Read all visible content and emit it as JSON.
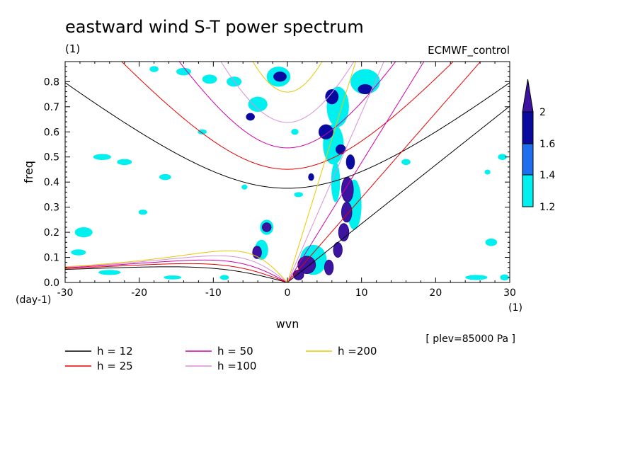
{
  "chart_data": {
    "type": "heatmap",
    "title": "eastward wind S-T power spectrum",
    "subtitle_left": "(1)",
    "subtitle_right": "ECMWF_control",
    "xlabel": "wvn",
    "ylabel": "freq",
    "x_unit": "(1)",
    "y_unit": "(day-1)",
    "xlim": [
      -30,
      30
    ],
    "ylim": [
      0,
      0.88
    ],
    "xticks": [
      -30,
      -20,
      -10,
      0,
      10,
      20,
      30
    ],
    "xtick_labels": [
      "-30",
      "-20",
      "-10",
      "0",
      "10",
      "20",
      "30"
    ],
    "yticks": [
      0,
      0.1,
      0.2,
      0.3,
      0.4,
      0.5,
      0.6,
      0.7,
      0.8
    ],
    "ytick_labels": [
      "0.0",
      "0.1",
      "0.2",
      "0.3",
      "0.4",
      "0.5",
      "0.6",
      "0.7",
      "0.8"
    ],
    "annotation": "[ plev=85000 Pa ]",
    "colorbar": {
      "levels": [
        1.2,
        1.4,
        1.6,
        2
      ],
      "level_labels": [
        "1.2",
        "1.4",
        "1.6",
        "2"
      ],
      "colors": [
        "#00f0f0",
        "#1e6ef0",
        "#0a0aa0",
        "#3c14a0"
      ]
    },
    "dispersion_curves": [
      {
        "label": "h = 12",
        "h": 12,
        "color": "#000000"
      },
      {
        "label": "h = 25",
        "h": 25,
        "color": "#e80000"
      },
      {
        "label": "h = 50",
        "h": 50,
        "color": "#d000a8"
      },
      {
        "label": "h =100",
        "h": 100,
        "color": "#d890d8"
      },
      {
        "label": "h =200",
        "h": 200,
        "color": "#e8c800"
      }
    ],
    "blobs": [
      {
        "x": 8.1,
        "y": 0.37,
        "rx": 0.8,
        "ry": 0.05,
        "lvl": 3
      },
      {
        "x": 8.0,
        "y": 0.28,
        "rx": 0.7,
        "ry": 0.04,
        "lvl": 3
      },
      {
        "x": 7.6,
        "y": 0.2,
        "rx": 0.7,
        "ry": 0.035,
        "lvl": 3
      },
      {
        "x": 6.8,
        "y": 0.13,
        "rx": 0.6,
        "ry": 0.03,
        "lvl": 3
      },
      {
        "x": 5.6,
        "y": 0.06,
        "rx": 0.6,
        "ry": 0.03,
        "lvl": 3
      },
      {
        "x": 2.6,
        "y": 0.07,
        "rx": 1.2,
        "ry": 0.035,
        "lvl": 3
      },
      {
        "x": 1.5,
        "y": 0.03,
        "rx": 0.7,
        "ry": 0.02,
        "lvl": 3
      },
      {
        "x": -2.8,
        "y": 0.22,
        "rx": 0.6,
        "ry": 0.018,
        "lvl": 3
      },
      {
        "x": -4.1,
        "y": 0.12,
        "rx": 0.6,
        "ry": 0.025,
        "lvl": 3
      },
      {
        "x": 8.5,
        "y": 0.48,
        "rx": 0.6,
        "ry": 0.03,
        "lvl": 2
      },
      {
        "x": 5.2,
        "y": 0.6,
        "rx": 1.0,
        "ry": 0.03,
        "lvl": 2
      },
      {
        "x": 7.2,
        "y": 0.53,
        "rx": 0.7,
        "ry": 0.02,
        "lvl": 2
      },
      {
        "x": 6.0,
        "y": 0.74,
        "rx": 0.9,
        "ry": 0.03,
        "lvl": 2
      },
      {
        "x": 10.5,
        "y": 0.77,
        "rx": 1.0,
        "ry": 0.02,
        "lvl": 2
      },
      {
        "x": -1.0,
        "y": 0.82,
        "rx": 0.9,
        "ry": 0.02,
        "lvl": 2
      },
      {
        "x": -5.0,
        "y": 0.66,
        "rx": 0.6,
        "ry": 0.015,
        "lvl": 2
      },
      {
        "x": 3.2,
        "y": 0.42,
        "rx": 0.4,
        "ry": 0.015,
        "lvl": 2
      },
      {
        "x": 6.5,
        "y": 0.4,
        "rx": 0.6,
        "ry": 0.08,
        "lvl": 1
      },
      {
        "x": 6.2,
        "y": 0.55,
        "rx": 1.4,
        "ry": 0.08,
        "lvl": 1
      },
      {
        "x": 6.8,
        "y": 0.7,
        "rx": 1.5,
        "ry": 0.08,
        "lvl": 1
      },
      {
        "x": 10.5,
        "y": 0.8,
        "rx": 2.0,
        "ry": 0.05,
        "lvl": 1
      },
      {
        "x": 9.0,
        "y": 0.31,
        "rx": 1.0,
        "ry": 0.1,
        "lvl": 1
      },
      {
        "x": 3.5,
        "y": 0.09,
        "rx": 1.8,
        "ry": 0.06,
        "lvl": 1
      },
      {
        "x": -3.5,
        "y": 0.13,
        "rx": 0.9,
        "ry": 0.04,
        "lvl": 1
      },
      {
        "x": -2.8,
        "y": 0.22,
        "rx": 0.9,
        "ry": 0.03,
        "lvl": 1
      },
      {
        "x": -1.2,
        "y": 0.82,
        "rx": 1.6,
        "ry": 0.04,
        "lvl": 1
      },
      {
        "x": -4.0,
        "y": 0.71,
        "rx": 1.3,
        "ry": 0.03,
        "lvl": 1
      },
      {
        "x": -7.2,
        "y": 0.8,
        "rx": 1.0,
        "ry": 0.02,
        "lvl": 1
      },
      {
        "x": -10.5,
        "y": 0.81,
        "rx": 1.0,
        "ry": 0.018,
        "lvl": 1
      },
      {
        "x": -14.0,
        "y": 0.84,
        "rx": 1.0,
        "ry": 0.015,
        "lvl": 1
      },
      {
        "x": -18.0,
        "y": 0.85,
        "rx": 0.6,
        "ry": 0.012,
        "lvl": 1
      },
      {
        "x": -27.5,
        "y": 0.2,
        "rx": 1.2,
        "ry": 0.02,
        "lvl": 1
      },
      {
        "x": -28.2,
        "y": 0.12,
        "rx": 1.0,
        "ry": 0.012,
        "lvl": 1
      },
      {
        "x": -24.0,
        "y": 0.04,
        "rx": 1.5,
        "ry": 0.01,
        "lvl": 1
      },
      {
        "x": -15.5,
        "y": 0.02,
        "rx": 1.2,
        "ry": 0.008,
        "lvl": 1
      },
      {
        "x": -19.5,
        "y": 0.28,
        "rx": 0.6,
        "ry": 0.01,
        "lvl": 1
      },
      {
        "x": -22.0,
        "y": 0.48,
        "rx": 1.0,
        "ry": 0.012,
        "lvl": 1
      },
      {
        "x": -25.0,
        "y": 0.5,
        "rx": 1.2,
        "ry": 0.012,
        "lvl": 1
      },
      {
        "x": -16.5,
        "y": 0.42,
        "rx": 0.8,
        "ry": 0.012,
        "lvl": 1
      },
      {
        "x": -11.5,
        "y": 0.6,
        "rx": 0.6,
        "ry": 0.01,
        "lvl": 1
      },
      {
        "x": 1.5,
        "y": 0.35,
        "rx": 0.6,
        "ry": 0.01,
        "lvl": 1
      },
      {
        "x": 16.0,
        "y": 0.48,
        "rx": 0.6,
        "ry": 0.012,
        "lvl": 1
      },
      {
        "x": 25.5,
        "y": 0.02,
        "rx": 1.5,
        "ry": 0.01,
        "lvl": 1
      },
      {
        "x": 27.5,
        "y": 0.16,
        "rx": 0.8,
        "ry": 0.015,
        "lvl": 1
      },
      {
        "x": 29.0,
        "y": 0.5,
        "rx": 0.6,
        "ry": 0.012,
        "lvl": 1
      },
      {
        "x": 27.0,
        "y": 0.44,
        "rx": 0.4,
        "ry": 0.01,
        "lvl": 1
      },
      {
        "x": 29.3,
        "y": 0.02,
        "rx": 0.6,
        "ry": 0.012,
        "lvl": 1
      },
      {
        "x": -8.5,
        "y": 0.02,
        "rx": 0.6,
        "ry": 0.01,
        "lvl": 1
      },
      {
        "x": -5.8,
        "y": 0.38,
        "rx": 0.4,
        "ry": 0.01,
        "lvl": 1
      },
      {
        "x": 1.0,
        "y": 0.6,
        "rx": 0.5,
        "ry": 0.012,
        "lvl": 1
      }
    ]
  }
}
